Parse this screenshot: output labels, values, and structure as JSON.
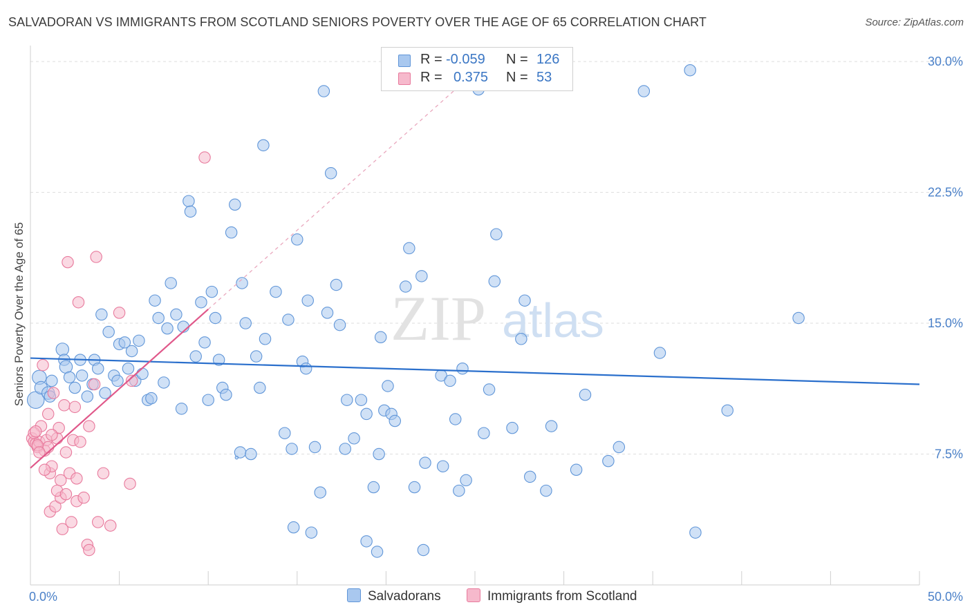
{
  "title": "SALVADORAN VS IMMIGRANTS FROM SCOTLAND SENIORS POVERTY OVER THE AGE OF 65 CORRELATION CHART",
  "source": "Source: ZipAtlas.com",
  "legend_top": {
    "rows": [
      {
        "r_label": "R =",
        "r_value": "-0.059",
        "n_label": "N =",
        "n_value": "126"
      },
      {
        "r_label": "R =",
        "r_value": "0.375",
        "n_label": "N =",
        "n_value": "53"
      }
    ]
  },
  "legend_bottom": {
    "salvadorans": "Salvadorans",
    "scotland": "Immigrants from Scotland"
  },
  "colors": {
    "blue_fill": "#a9c8ef",
    "blue_stroke": "#5f95d8",
    "blue_line": "#2a6fcc",
    "pink_fill": "#f6b9cc",
    "pink_stroke": "#e8799c",
    "pink_line": "#e0588a",
    "tick_text": "#4a80c8"
  },
  "chart_data": {
    "type": "scatter",
    "title": "SALVADORAN VS IMMIGRANTS FROM SCOTLAND SENIORS POVERTY OVER THE AGE OF 65 CORRELATION CHART",
    "xlabel": "",
    "ylabel": "Seniors Poverty Over the Age of 65",
    "xlim": [
      0,
      50
    ],
    "ylim": [
      0,
      30
    ],
    "x_tick_labels": [
      "0.0%",
      "50.0%"
    ],
    "y_ticks": [
      7.5,
      15.0,
      22.5,
      30.0
    ],
    "y_tick_labels": [
      "7.5%",
      "15.0%",
      "22.5%",
      "30.0%"
    ],
    "grid": true,
    "legend_position": "top-center",
    "watermark": "ZIPatlas",
    "series": [
      {
        "name": "Salvadorans",
        "r": -0.059,
        "n": 126,
        "trend": {
          "x": [
            0,
            50
          ],
          "y": [
            13.0,
            11.5
          ]
        },
        "points": [
          [
            0.3,
            10.6,
            11
          ],
          [
            0.5,
            11.9,
            9
          ],
          [
            0.6,
            11.3,
            8
          ],
          [
            1.0,
            11.0,
            8
          ],
          [
            1.1,
            10.8,
            7
          ],
          [
            1.2,
            11.7,
            7
          ],
          [
            1.8,
            13.5,
            8
          ],
          [
            1.9,
            12.9,
            7
          ],
          [
            2.0,
            12.5,
            8
          ],
          [
            2.2,
            11.9,
            7
          ],
          [
            2.5,
            11.3,
            7
          ],
          [
            2.8,
            12.9,
            7
          ],
          [
            2.9,
            12.0,
            7
          ],
          [
            3.2,
            10.8,
            7
          ],
          [
            3.5,
            11.5,
            7
          ],
          [
            3.6,
            12.9,
            7
          ],
          [
            3.8,
            12.4,
            7
          ],
          [
            4.0,
            15.5,
            7
          ],
          [
            4.2,
            11.0,
            7
          ],
          [
            4.4,
            14.5,
            7
          ],
          [
            4.7,
            12.0,
            7
          ],
          [
            4.9,
            11.7,
            7
          ],
          [
            5.0,
            13.8,
            7
          ],
          [
            5.3,
            13.9,
            7
          ],
          [
            5.5,
            12.4,
            7
          ],
          [
            5.7,
            13.4,
            7
          ],
          [
            5.9,
            11.7,
            7
          ],
          [
            6.1,
            14.0,
            7
          ],
          [
            6.3,
            12.1,
            7
          ],
          [
            6.6,
            10.6,
            7
          ],
          [
            6.8,
            10.7,
            7
          ],
          [
            7.0,
            16.3,
            7
          ],
          [
            7.2,
            15.3,
            7
          ],
          [
            7.5,
            11.6,
            7
          ],
          [
            7.7,
            14.7,
            7
          ],
          [
            7.9,
            17.3,
            7
          ],
          [
            8.2,
            15.5,
            7
          ],
          [
            8.5,
            10.1,
            7
          ],
          [
            8.6,
            14.8,
            7
          ],
          [
            8.9,
            22.0,
            7
          ],
          [
            9.0,
            21.4,
            7
          ],
          [
            9.3,
            13.1,
            7
          ],
          [
            9.6,
            16.2,
            7
          ],
          [
            9.8,
            13.9,
            7
          ],
          [
            10.0,
            10.6,
            7
          ],
          [
            10.2,
            16.8,
            7
          ],
          [
            10.4,
            15.3,
            7
          ],
          [
            10.6,
            12.9,
            7
          ],
          [
            10.8,
            11.3,
            7
          ],
          [
            11.0,
            10.9,
            7
          ],
          [
            11.3,
            20.2,
            7
          ],
          [
            11.5,
            21.8,
            7
          ],
          [
            11.8,
            7.6,
            7
          ],
          [
            11.9,
            17.3,
            7
          ],
          [
            12.1,
            15.0,
            7
          ],
          [
            12.4,
            7.5,
            7
          ],
          [
            12.7,
            13.1,
            7
          ],
          [
            12.9,
            11.3,
            7
          ],
          [
            13.1,
            25.2,
            7
          ],
          [
            13.2,
            14.1,
            7
          ],
          [
            13.8,
            16.8,
            7
          ],
          [
            14.3,
            8.7,
            7
          ],
          [
            14.5,
            15.2,
            7
          ],
          [
            14.7,
            7.8,
            7
          ],
          [
            14.8,
            3.3,
            7
          ],
          [
            15.0,
            19.8,
            7
          ],
          [
            15.3,
            12.8,
            7
          ],
          [
            15.5,
            12.4,
            7
          ],
          [
            15.6,
            16.3,
            7
          ],
          [
            15.8,
            3.0,
            7
          ],
          [
            16.0,
            7.9,
            7
          ],
          [
            16.3,
            5.3,
            7
          ],
          [
            16.5,
            28.3,
            7
          ],
          [
            16.7,
            15.6,
            7
          ],
          [
            16.9,
            23.6,
            7
          ],
          [
            17.2,
            17.2,
            7
          ],
          [
            17.4,
            14.9,
            7
          ],
          [
            17.7,
            7.8,
            7
          ],
          [
            17.8,
            10.6,
            7
          ],
          [
            18.2,
            8.4,
            7
          ],
          [
            18.6,
            10.6,
            7
          ],
          [
            18.9,
            9.8,
            7
          ],
          [
            18.9,
            2.5,
            7
          ],
          [
            19.3,
            5.6,
            7
          ],
          [
            19.5,
            1.9,
            7
          ],
          [
            19.6,
            7.5,
            7
          ],
          [
            19.7,
            14.2,
            7
          ],
          [
            19.9,
            10.0,
            7
          ],
          [
            20.1,
            11.4,
            7
          ],
          [
            20.3,
            9.8,
            7
          ],
          [
            20.5,
            9.4,
            7
          ],
          [
            21.1,
            17.1,
            7
          ],
          [
            21.3,
            19.3,
            7
          ],
          [
            21.6,
            5.6,
            7
          ],
          [
            22.0,
            17.7,
            7
          ],
          [
            22.1,
            2.0,
            7
          ],
          [
            22.2,
            7.0,
            7
          ],
          [
            23.1,
            12.0,
            7
          ],
          [
            23.2,
            6.8,
            7
          ],
          [
            23.6,
            11.7,
            7
          ],
          [
            23.9,
            9.5,
            7
          ],
          [
            24.1,
            5.4,
            7
          ],
          [
            24.3,
            12.4,
            7
          ],
          [
            24.5,
            6.0,
            7
          ],
          [
            25.2,
            28.4,
            7
          ],
          [
            25.5,
            8.7,
            7
          ],
          [
            25.8,
            11.2,
            7
          ],
          [
            26.1,
            17.4,
            7
          ],
          [
            26.2,
            20.1,
            7
          ],
          [
            27.1,
            9.0,
            7
          ],
          [
            27.6,
            14.1,
            7
          ],
          [
            27.8,
            16.3,
            7
          ],
          [
            28.1,
            6.2,
            7
          ],
          [
            29.0,
            5.4,
            7
          ],
          [
            29.3,
            9.1,
            7
          ],
          [
            30.7,
            6.6,
            7
          ],
          [
            31.2,
            10.9,
            7
          ],
          [
            32.5,
            7.1,
            7
          ],
          [
            33.1,
            7.9,
            7
          ],
          [
            34.5,
            28.3,
            7
          ],
          [
            35.4,
            13.3,
            7
          ],
          [
            37.1,
            29.5,
            7
          ],
          [
            37.4,
            3.0,
            7
          ],
          [
            39.2,
            10.0,
            7
          ],
          [
            43.2,
            15.3,
            7
          ],
          [
            11.6,
            7.3,
            1
          ]
        ]
      },
      {
        "name": "Immigrants from Scotland",
        "r": 0.375,
        "n": 53,
        "trend": {
          "x": [
            0,
            10
          ],
          "y": [
            6.7,
            15.8
          ]
        },
        "trend_extension": {
          "x": [
            10,
            26
          ],
          "y": [
            15.8,
            30.3
          ]
        },
        "points": [
          [
            0.1,
            8.4,
            7
          ],
          [
            0.2,
            8.2,
            7
          ],
          [
            0.3,
            8.1,
            7
          ],
          [
            0.4,
            7.9,
            7
          ],
          [
            0.5,
            8.2,
            7
          ],
          [
            0.6,
            9.1,
            7
          ],
          [
            0.7,
            12.6,
            7
          ],
          [
            0.8,
            7.7,
            7
          ],
          [
            0.9,
            8.3,
            7
          ],
          [
            1.0,
            9.8,
            7
          ],
          [
            1.0,
            7.9,
            7
          ],
          [
            1.1,
            6.4,
            7
          ],
          [
            1.1,
            4.2,
            7
          ],
          [
            1.2,
            6.8,
            7
          ],
          [
            1.3,
            11.0,
            7
          ],
          [
            1.4,
            4.5,
            7
          ],
          [
            1.5,
            8.4,
            7
          ],
          [
            1.6,
            9.0,
            7
          ],
          [
            1.7,
            6.0,
            7
          ],
          [
            1.7,
            5.0,
            7
          ],
          [
            1.8,
            3.2,
            7
          ],
          [
            1.9,
            10.3,
            7
          ],
          [
            2.0,
            7.6,
            7
          ],
          [
            2.1,
            18.5,
            7
          ],
          [
            2.2,
            6.4,
            7
          ],
          [
            2.3,
            3.6,
            7
          ],
          [
            2.4,
            8.3,
            7
          ],
          [
            2.5,
            10.2,
            7
          ],
          [
            2.6,
            4.8,
            7
          ],
          [
            2.7,
            16.2,
            7
          ],
          [
            2.8,
            8.2,
            7
          ],
          [
            3.0,
            5.0,
            7
          ],
          [
            3.2,
            2.3,
            7
          ],
          [
            3.3,
            2.0,
            7
          ],
          [
            3.3,
            9.1,
            7
          ],
          [
            3.6,
            11.5,
            7
          ],
          [
            3.7,
            18.8,
            7
          ],
          [
            3.8,
            3.6,
            7
          ],
          [
            4.1,
            6.4,
            7
          ],
          [
            4.5,
            3.4,
            7
          ],
          [
            5.0,
            15.6,
            7
          ],
          [
            5.6,
            5.8,
            7
          ],
          [
            5.7,
            11.7,
            7
          ],
          [
            9.8,
            24.5,
            7
          ],
          [
            0.2,
            8.7,
            7
          ],
          [
            0.4,
            8.0,
            7
          ],
          [
            0.5,
            7.6,
            7
          ],
          [
            0.8,
            6.6,
            7
          ],
          [
            1.2,
            8.6,
            7
          ],
          [
            1.5,
            5.4,
            7
          ],
          [
            2.0,
            5.2,
            7
          ],
          [
            2.6,
            6.1,
            7
          ],
          [
            0.3,
            8.8,
            7
          ]
        ]
      }
    ]
  }
}
